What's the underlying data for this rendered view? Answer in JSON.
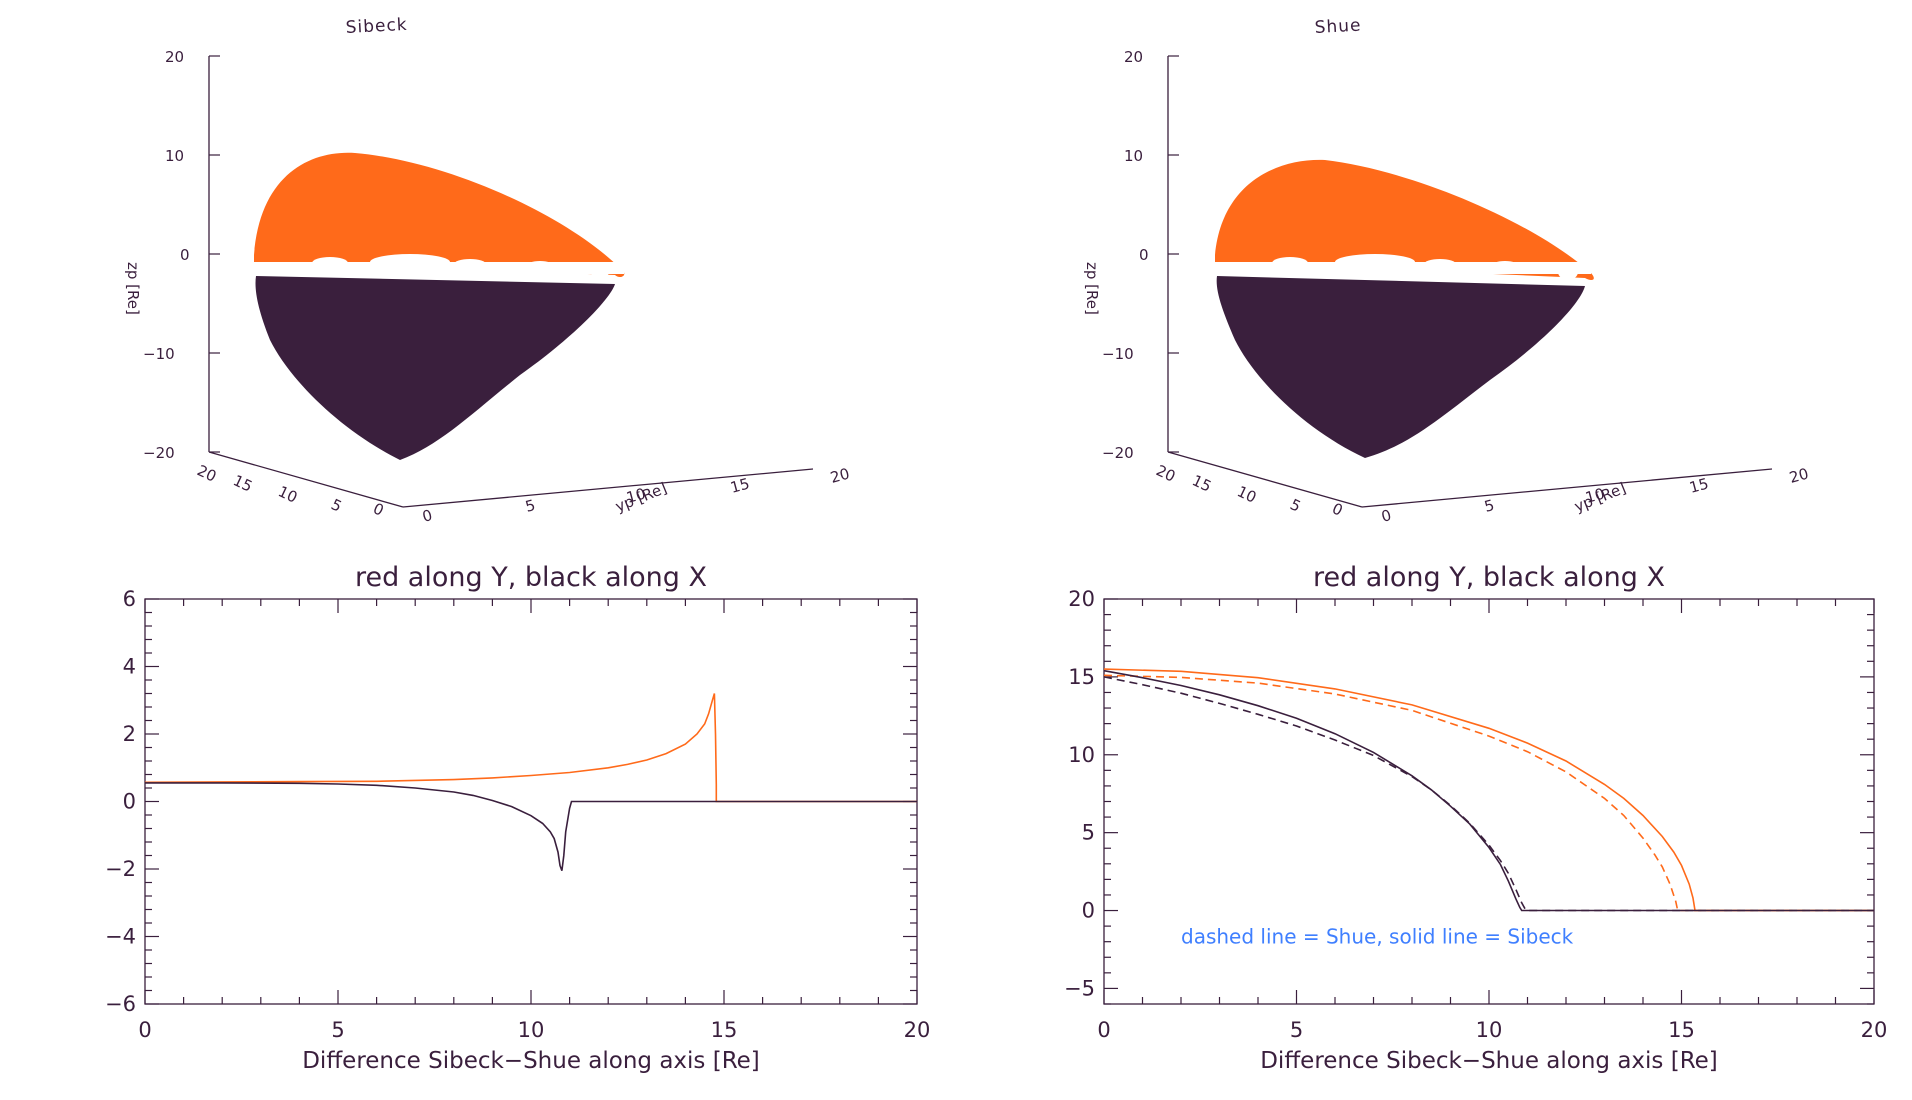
{
  "colors": {
    "axis": "#3a1f3d",
    "orange": "#ff6a1a",
    "dark": "#3a1f3d",
    "annotation": "#3f7fff"
  },
  "chart_data": [
    {
      "type": "surface3d",
      "title": "Sibeck",
      "zlabel": "zp [Re]",
      "ylabel": "yp [Re]",
      "z_ticks": [
        "20",
        "10",
        "0",
        "−10",
        "−20"
      ],
      "y_ticks": [
        "20",
        "15",
        "10",
        "5",
        "0"
      ],
      "x_ticks": [
        "0",
        "5",
        "10",
        "15",
        "20"
      ],
      "description_series": [
        {
          "name": "upper half"
        },
        {
          "name": "lower half"
        }
      ]
    },
    {
      "type": "surface3d",
      "title": "Shue",
      "zlabel": "zp [Re]",
      "ylabel": "yp [Re]",
      "z_ticks": [
        "20",
        "10",
        "0",
        "−10",
        "−20"
      ],
      "y_ticks": [
        "20",
        "15",
        "10",
        "5",
        "0"
      ],
      "x_ticks": [
        "0",
        "5",
        "10",
        "15",
        "20"
      ]
    },
    {
      "type": "line",
      "title": "red along Y, black along X",
      "xlabel": "Difference Sibeck−Shue along axis [Re]",
      "ylabel": "",
      "xlim": [
        0,
        20
      ],
      "ylim": [
        -6,
        6
      ],
      "x_ticks": [
        0,
        5,
        10,
        15,
        20
      ],
      "y_ticks": [
        -6,
        -4,
        -2,
        0,
        2,
        4,
        6
      ],
      "x_tick_labels": [
        "0",
        "5",
        "10",
        "15",
        "20"
      ],
      "y_tick_labels": [
        "−6",
        "−4",
        "−2",
        "0",
        "2",
        "4",
        "6"
      ],
      "series": [
        {
          "color": "#ff6a1a",
          "style": "solid",
          "x": [
            0,
            2,
            4,
            6,
            8,
            9,
            10,
            11,
            12,
            12.5,
            13,
            13.5,
            14,
            14.3,
            14.5,
            14.6,
            14.7,
            14.75,
            14.78,
            14.8,
            14.8,
            20
          ],
          "y": [
            0.57,
            0.58,
            0.59,
            0.6,
            0.65,
            0.7,
            0.77,
            0.86,
            1.0,
            1.1,
            1.23,
            1.42,
            1.7,
            2.0,
            2.3,
            2.6,
            3.0,
            3.2,
            2.0,
            0.5,
            0,
            0
          ]
        },
        {
          "color": "#3a1f3d",
          "style": "solid",
          "x": [
            0,
            2,
            4,
            5,
            6,
            7,
            8,
            8.5,
            9,
            9.5,
            10,
            10.3,
            10.5,
            10.6,
            10.7,
            10.75,
            10.8,
            10.85,
            10.9,
            11.0,
            11.05,
            20
          ],
          "y": [
            0.55,
            0.55,
            0.54,
            0.52,
            0.48,
            0.4,
            0.28,
            0.18,
            0.03,
            -0.15,
            -0.42,
            -0.65,
            -0.9,
            -1.1,
            -1.5,
            -1.9,
            -2.05,
            -1.6,
            -0.9,
            -0.2,
            0,
            0
          ]
        }
      ]
    },
    {
      "type": "line",
      "title": "red along Y, black along X",
      "xlabel": "Difference Sibeck−Shue along axis [Re]",
      "ylabel": "",
      "xlim": [
        0,
        20
      ],
      "ylim": [
        -6,
        20
      ],
      "x_ticks": [
        0,
        5,
        10,
        15,
        20
      ],
      "y_ticks": [
        -5,
        0,
        5,
        10,
        15,
        20
      ],
      "x_tick_labels": [
        "0",
        "5",
        "10",
        "15",
        "20"
      ],
      "y_tick_labels": [
        "−5",
        "0",
        "5",
        "10",
        "15",
        "20"
      ],
      "annotation": "dashed line = Shue, solid line = Sibeck",
      "series": [
        {
          "color": "#ff6a1a",
          "style": "solid",
          "x": [
            0,
            2,
            4,
            6,
            8,
            10,
            11,
            12,
            13,
            13.5,
            14,
            14.5,
            14.8,
            15.0,
            15.2,
            15.3,
            15.35,
            20
          ],
          "y": [
            15.5,
            15.36,
            14.95,
            14.23,
            13.2,
            11.7,
            10.75,
            9.6,
            8.1,
            7.2,
            6.1,
            4.75,
            3.75,
            2.9,
            1.7,
            0.8,
            0,
            0
          ]
        },
        {
          "color": "#ff6a1a",
          "style": "dashed",
          "x": [
            0,
            2,
            4,
            6,
            8,
            10,
            11,
            12,
            13,
            13.5,
            14,
            14.3,
            14.5,
            14.7,
            14.85,
            14.9,
            20
          ],
          "y": [
            15.1,
            14.97,
            14.6,
            13.9,
            12.85,
            11.2,
            10.2,
            8.9,
            7.2,
            6.1,
            4.65,
            3.6,
            2.8,
            1.7,
            0.6,
            0,
            0
          ]
        },
        {
          "color": "#3a1f3d",
          "style": "solid",
          "x": [
            0,
            1,
            2,
            3,
            4,
            5,
            6,
            7,
            8,
            8.5,
            9,
            9.5,
            10,
            10.3,
            10.5,
            10.7,
            10.8,
            10.85,
            20
          ],
          "y": [
            15.4,
            14.95,
            14.45,
            13.85,
            13.15,
            12.35,
            11.35,
            10.15,
            8.65,
            7.75,
            6.7,
            5.55,
            4.05,
            2.95,
            1.9,
            0.75,
            0.2,
            0,
            0
          ]
        },
        {
          "color": "#3a1f3d",
          "style": "dashed",
          "x": [
            0,
            1,
            2,
            3,
            4,
            5,
            6,
            7,
            8,
            8.5,
            9,
            9.5,
            10,
            10.3,
            10.5,
            10.7,
            10.85,
            10.95,
            11.0,
            20
          ],
          "y": [
            15.0,
            14.5,
            13.95,
            13.3,
            12.6,
            11.85,
            10.95,
            9.95,
            8.6,
            7.75,
            6.75,
            5.6,
            4.2,
            3.2,
            2.4,
            1.35,
            0.5,
            0.05,
            0,
            0
          ]
        }
      ]
    }
  ]
}
